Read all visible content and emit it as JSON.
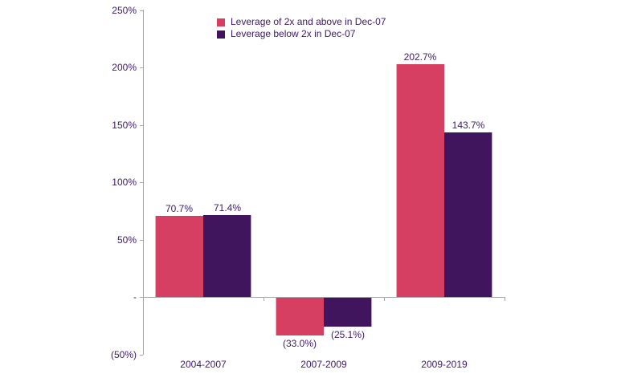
{
  "chart_data": {
    "type": "bar",
    "title": "",
    "xlabel": "",
    "ylabel": "",
    "categories": [
      "2004-2007",
      "2007-2009",
      "2009-2019"
    ],
    "series": [
      {
        "name": "Leverage of 2x and above in Dec-07",
        "color": "#D63E62",
        "edge_color": "#E6AFC2",
        "values": [
          70.7,
          -33.0,
          202.7
        ],
        "labels": [
          "70.7%",
          "(33.0%)",
          "202.7%"
        ]
      },
      {
        "name": "Leverage below 2x in Dec-07",
        "color": "#41155E",
        "edge_color": "#B9A4CC",
        "values": [
          71.4,
          -25.1,
          143.7
        ],
        "labels": [
          "71.4%",
          "(25.1%)",
          "143.7%"
        ]
      }
    ],
    "ylim": [
      -50,
      250
    ],
    "yticks": [
      {
        "label": "250%",
        "value": 250
      },
      {
        "label": "200%",
        "value": 200
      },
      {
        "label": "150%",
        "value": 150
      },
      {
        "label": "100%",
        "value": 100
      },
      {
        "label": "50%",
        "value": 50
      },
      {
        "label": "-",
        "value": 0
      },
      {
        "label": "(50%)",
        "value": -50
      }
    ],
    "grid": false,
    "legend_position": "top-center",
    "negative_label_format": "parentheses"
  },
  "colors": {
    "series1": "#D63E62",
    "series2": "#41155E",
    "text": "#3D1A66",
    "axis": "#A6A6A6",
    "background": "#FFFFFF"
  }
}
